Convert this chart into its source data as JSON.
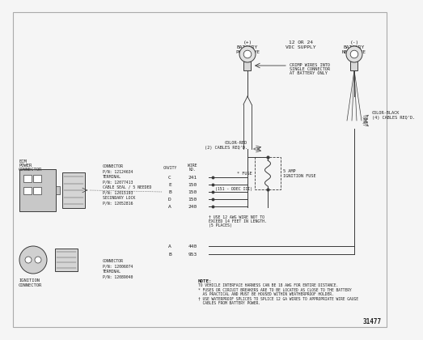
{
  "bg_color": "#f5f5f5",
  "line_color": "#3a3a3a",
  "text_color": "#222222",
  "diagram_id": "31477",
  "connector_info_ecm": [
    "CONNECTOR",
    "P/N: 12124634",
    "TERMINAL",
    "P/N: 12077413",
    "CABLE SEAL / 5 NEEDED",
    "P/N: 12015193",
    "SECONDARY LOCK",
    "P/N: 12052816"
  ],
  "connector_info_ign": [
    "CONNECTOR",
    "P/N: 12006074",
    "TERMINAL",
    "P/N: 12089040"
  ],
  "cavity_labels_ecm": [
    "C",
    "E",
    "B",
    "D",
    "A"
  ],
  "wire_numbers_ecm": [
    "241",
    "150",
    "150",
    "150",
    "240"
  ],
  "cavity_labels_ign": [
    "A",
    "B"
  ],
  "wire_numbers_ign": [
    "440",
    "953"
  ],
  "note_lines": [
    "NOTE:",
    "TO VEHICLE INTERFACE HARNESS CAN BE 18 AWG FOR ENTIRE DISTANCE.",
    "* FUSES OR CIRCUIT BREAKERS ARE TO BE LOCATED AS CLOSE TO THE BATTERY",
    "  AS PRACTICAL AND MUST BE HOUSED WITHIN WEATHERPROOF HOLDER.",
    "† USE WATERPROOF SPLICES TO SPLICE 12 GA WIRES TO APPROPRIATE WIRE GAUGE",
    "  CABLES FROM BATTERY POWER."
  ],
  "ddec_label": "(151 - DDEC III)",
  "footnote": [
    "† USE 12 AWG WIRE NOT TO",
    "EXCEED 14 FEET IN LENGTH.",
    "(5 PLACES)"
  ],
  "battery_pos_label": [
    "(+)",
    "BATTERY",
    "POSITIVE"
  ],
  "battery_neg_label": [
    "(-)",
    "BATTERY",
    "NEGATIVE"
  ],
  "vdc_label": [
    "12 OR 24",
    "VDC SUPPLY"
  ],
  "crimp_label": [
    "CRIMP WIRES INTO",
    "SINGLE CONNECTOR",
    "AT BATTERY ONLY"
  ],
  "color_red_label": [
    "COLOR-RED",
    "(2) CABLES REQ'D."
  ],
  "color_black_label": [
    "COLOR-BLACK",
    "(4) CABLES REQ'D."
  ],
  "fuse_label": "* FUSE",
  "fuse5amp_label": [
    "5 AMP",
    "IGNITION FUSE"
  ],
  "ecm_label": [
    "ECM",
    "POWER",
    "CONNECTOR"
  ],
  "ign_label": [
    "IGNITION",
    "CONNECTOR"
  ]
}
